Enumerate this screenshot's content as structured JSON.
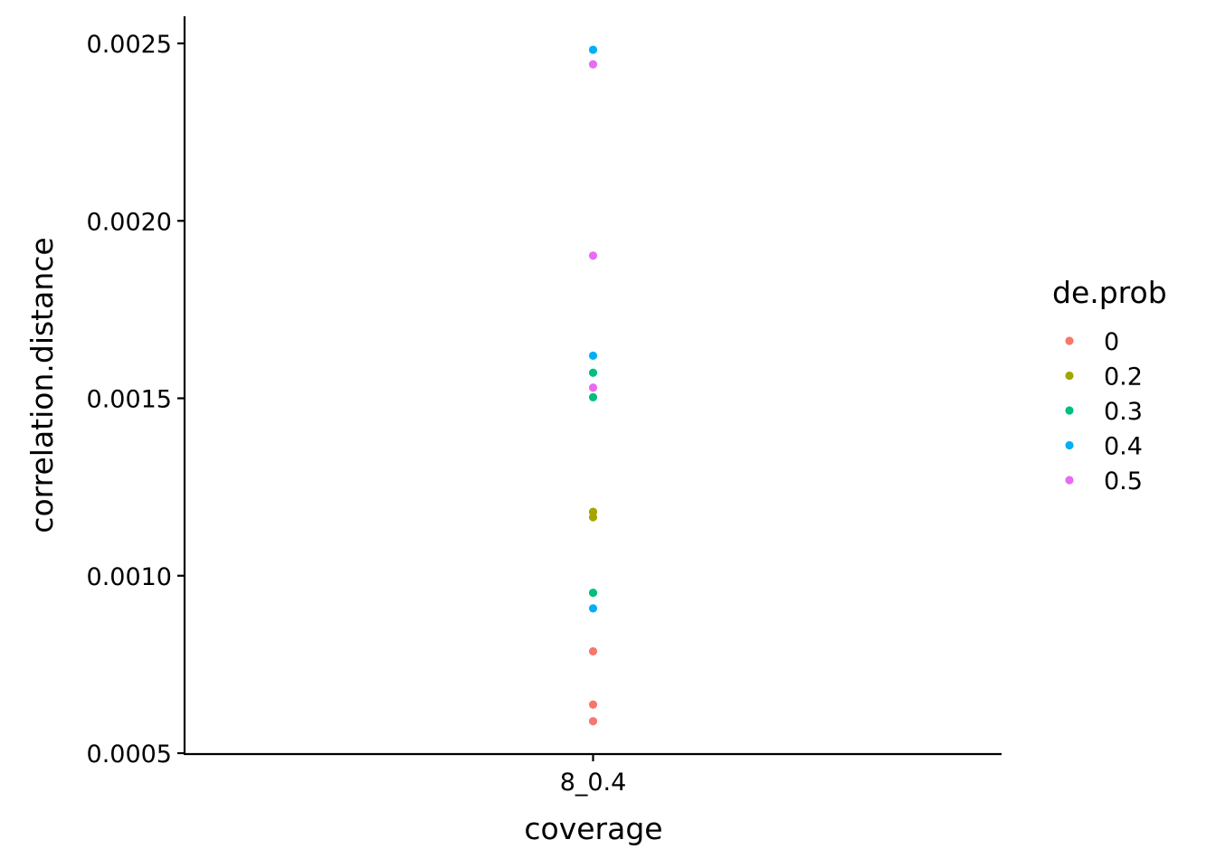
{
  "chart_data": {
    "type": "scatter",
    "xlabel": "coverage",
    "ylabel": "correlation.distance",
    "categories": [
      "8_0.4"
    ],
    "ylim": [
      0.0005,
      0.0025
    ],
    "yticks": [
      "0.0005",
      "0.0010",
      "0.0015",
      "0.0020",
      "0.0025"
    ],
    "grid": false,
    "legend": {
      "title": "de.prob",
      "placement": "right"
    },
    "series": [
      {
        "name": "0",
        "color": "#F8766D",
        "x": [
          "8_0.4",
          "8_0.4",
          "8_0.4"
        ],
        "values": [
          0.000787,
          0.000637,
          0.00059
        ]
      },
      {
        "name": "0.2",
        "color": "#A3A500",
        "x": [
          "8_0.4",
          "8_0.4"
        ],
        "values": [
          0.00118,
          0.001165
        ]
      },
      {
        "name": "0.3",
        "color": "#00BF7D",
        "x": [
          "8_0.4",
          "8_0.4",
          "8_0.4"
        ],
        "values": [
          0.001572,
          0.001503,
          0.000952
        ]
      },
      {
        "name": "0.4",
        "color": "#00B0F6",
        "x": [
          "8_0.4",
          "8_0.4",
          "8_0.4"
        ],
        "values": [
          0.002482,
          0.00162,
          0.000908
        ]
      },
      {
        "name": "0.5",
        "color": "#E76BF3",
        "x": [
          "8_0.4",
          "8_0.4",
          "8_0.4"
        ],
        "values": [
          0.002441,
          0.001902,
          0.00153
        ]
      }
    ]
  }
}
